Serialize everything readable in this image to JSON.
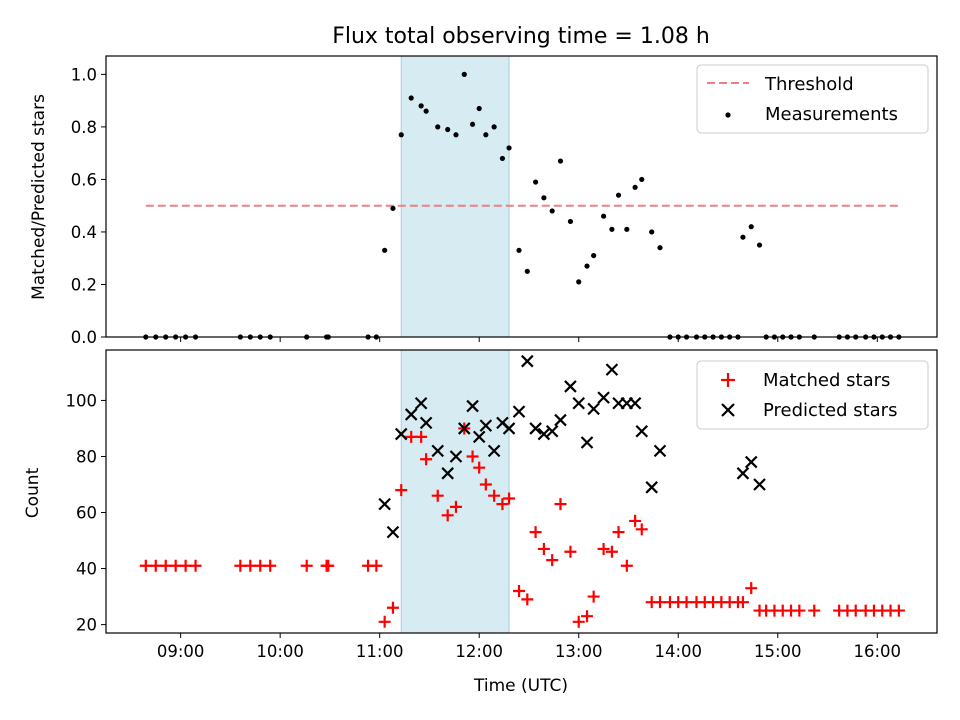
{
  "chart_data": [
    {
      "type": "scatter",
      "title": "Flux total observing time = 1.08 h",
      "xlabel": "",
      "ylabel": "Matched/Predicted stars",
      "xlim": [
        "08:15",
        "16:36"
      ],
      "ylim": [
        0,
        1.07
      ],
      "yticks": [
        "0.0",
        "0.2",
        "0.4",
        "0.6",
        "0.8",
        "1.0"
      ],
      "highlight_span": [
        "11:13",
        "12:18"
      ],
      "legend": {
        "placement": "upper right",
        "entries": [
          "Threshold",
          "Measurements"
        ]
      },
      "threshold": {
        "name": "Threshold",
        "value": 0.5,
        "x_range": [
          "08:39",
          "16:14"
        ],
        "color": "#f08080",
        "style": "dashed"
      },
      "series": [
        {
          "name": "Measurements",
          "color": "#000000",
          "marker": "dot",
          "points": [
            [
              "08:39",
              0
            ],
            [
              "08:45",
              0
            ],
            [
              "08:51",
              0
            ],
            [
              "08:57",
              0
            ],
            [
              "09:03",
              0
            ],
            [
              "09:09",
              0
            ],
            [
              "09:36",
              0
            ],
            [
              "09:42",
              0
            ],
            [
              "09:48",
              0
            ],
            [
              "09:54",
              0
            ],
            [
              "10:16",
              0
            ],
            [
              "10:28",
              0
            ],
            [
              "10:29",
              0
            ],
            [
              "10:53",
              0
            ],
            [
              "10:58",
              0
            ],
            [
              "11:03",
              0.33
            ],
            [
              "11:08",
              0.49
            ],
            [
              "11:13",
              0.77
            ],
            [
              "11:19",
              0.91
            ],
            [
              "11:25",
              0.88
            ],
            [
              "11:28",
              0.86
            ],
            [
              "11:35",
              0.8
            ],
            [
              "11:41",
              0.79
            ],
            [
              "11:46",
              0.77
            ],
            [
              "11:51",
              1.0
            ],
            [
              "11:56",
              0.81
            ],
            [
              "12:00",
              0.87
            ],
            [
              "12:04",
              0.77
            ],
            [
              "12:09",
              0.8
            ],
            [
              "12:14",
              0.68
            ],
            [
              "12:18",
              0.72
            ],
            [
              "12:24",
              0.33
            ],
            [
              "12:29",
              0.25
            ],
            [
              "12:34",
              0.59
            ],
            [
              "12:39",
              0.53
            ],
            [
              "12:44",
              0.48
            ],
            [
              "12:49",
              0.67
            ],
            [
              "12:55",
              0.44
            ],
            [
              "13:00",
              0.21
            ],
            [
              "13:05",
              0.27
            ],
            [
              "13:09",
              0.31
            ],
            [
              "13:15",
              0.46
            ],
            [
              "13:20",
              0.41
            ],
            [
              "13:24",
              0.54
            ],
            [
              "13:29",
              0.41
            ],
            [
              "13:34",
              0.57
            ],
            [
              "13:38",
              0.6
            ],
            [
              "13:44",
              0.4
            ],
            [
              "13:49",
              0.34
            ],
            [
              "13:55",
              0
            ],
            [
              "14:00",
              0
            ],
            [
              "14:05",
              0
            ],
            [
              "14:11",
              0
            ],
            [
              "14:16",
              0
            ],
            [
              "14:21",
              0
            ],
            [
              "14:26",
              0
            ],
            [
              "14:31",
              0
            ],
            [
              "14:36",
              0
            ],
            [
              "14:39",
              0.38
            ],
            [
              "14:44",
              0.42
            ],
            [
              "14:49",
              0.35
            ],
            [
              "14:53",
              0
            ],
            [
              "14:58",
              0
            ],
            [
              "15:03",
              0
            ],
            [
              "15:08",
              0
            ],
            [
              "15:13",
              0
            ],
            [
              "15:22",
              0
            ],
            [
              "15:37",
              0
            ],
            [
              "15:42",
              0
            ],
            [
              "15:47",
              0
            ],
            [
              "15:53",
              0
            ],
            [
              "15:58",
              0
            ],
            [
              "16:03",
              0
            ],
            [
              "16:08",
              0
            ],
            [
              "16:13",
              0
            ]
          ]
        }
      ]
    },
    {
      "type": "scatter",
      "title": "",
      "xlabel": "Time (UTC)",
      "ylabel": "Count",
      "xlim": [
        "08:15",
        "16:36"
      ],
      "ylim": [
        17,
        118
      ],
      "xticks": [
        "09:00",
        "10:00",
        "11:00",
        "12:00",
        "13:00",
        "14:00",
        "15:00",
        "16:00"
      ],
      "yticks": [
        "20",
        "40",
        "60",
        "80",
        "100"
      ],
      "highlight_span": [
        "11:13",
        "12:18"
      ],
      "legend": {
        "placement": "upper right",
        "entries": [
          "Matched stars",
          "Predicted stars"
        ]
      },
      "series": [
        {
          "name": "Matched stars",
          "color": "#ff0000",
          "marker": "plus",
          "points": [
            [
              "08:39",
              41
            ],
            [
              "08:45",
              41
            ],
            [
              "08:51",
              41
            ],
            [
              "08:57",
              41
            ],
            [
              "09:03",
              41
            ],
            [
              "09:09",
              41
            ],
            [
              "09:36",
              41
            ],
            [
              "09:42",
              41
            ],
            [
              "09:48",
              41
            ],
            [
              "09:54",
              41
            ],
            [
              "10:16",
              41
            ],
            [
              "10:28",
              41
            ],
            [
              "10:29",
              41
            ],
            [
              "10:53",
              41
            ],
            [
              "10:58",
              41
            ],
            [
              "11:03",
              21
            ],
            [
              "11:08",
              26
            ],
            [
              "11:13",
              68
            ],
            [
              "11:19",
              87
            ],
            [
              "11:25",
              87
            ],
            [
              "11:28",
              79
            ],
            [
              "11:35",
              66
            ],
            [
              "11:41",
              59
            ],
            [
              "11:46",
              62
            ],
            [
              "11:51",
              90
            ],
            [
              "11:56",
              80
            ],
            [
              "12:00",
              76
            ],
            [
              "12:04",
              70
            ],
            [
              "12:09",
              66
            ],
            [
              "12:14",
              63
            ],
            [
              "12:18",
              65
            ],
            [
              "12:24",
              32
            ],
            [
              "12:29",
              29
            ],
            [
              "12:34",
              53
            ],
            [
              "12:39",
              47
            ],
            [
              "12:44",
              43
            ],
            [
              "12:49",
              63
            ],
            [
              "12:55",
              46
            ],
            [
              "13:00",
              21
            ],
            [
              "13:05",
              23
            ],
            [
              "13:09",
              30
            ],
            [
              "13:15",
              47
            ],
            [
              "13:20",
              46
            ],
            [
              "13:24",
              53
            ],
            [
              "13:29",
              41
            ],
            [
              "13:34",
              57
            ],
            [
              "13:38",
              54
            ],
            [
              "13:44",
              28
            ],
            [
              "13:49",
              28
            ],
            [
              "13:55",
              28
            ],
            [
              "14:00",
              28
            ],
            [
              "14:05",
              28
            ],
            [
              "14:11",
              28
            ],
            [
              "14:16",
              28
            ],
            [
              "14:21",
              28
            ],
            [
              "14:26",
              28
            ],
            [
              "14:31",
              28
            ],
            [
              "14:36",
              28
            ],
            [
              "14:39",
              28
            ],
            [
              "14:44",
              33
            ],
            [
              "14:49",
              25
            ],
            [
              "14:53",
              25
            ],
            [
              "14:58",
              25
            ],
            [
              "15:03",
              25
            ],
            [
              "15:08",
              25
            ],
            [
              "15:13",
              25
            ],
            [
              "15:22",
              25
            ],
            [
              "15:37",
              25
            ],
            [
              "15:42",
              25
            ],
            [
              "15:47",
              25
            ],
            [
              "15:53",
              25
            ],
            [
              "15:58",
              25
            ],
            [
              "16:03",
              25
            ],
            [
              "16:08",
              25
            ],
            [
              "16:13",
              25
            ]
          ]
        },
        {
          "name": "Predicted stars",
          "color": "#000000",
          "marker": "x",
          "points": [
            [
              "11:03",
              63
            ],
            [
              "11:08",
              53
            ],
            [
              "11:13",
              88
            ],
            [
              "11:19",
              95
            ],
            [
              "11:25",
              99
            ],
            [
              "11:28",
              92
            ],
            [
              "11:35",
              82
            ],
            [
              "11:41",
              74
            ],
            [
              "11:46",
              80
            ],
            [
              "11:51",
              90
            ],
            [
              "11:56",
              98
            ],
            [
              "12:00",
              87
            ],
            [
              "12:04",
              91
            ],
            [
              "12:09",
              82
            ],
            [
              "12:14",
              92
            ],
            [
              "12:18",
              90
            ],
            [
              "12:24",
              96
            ],
            [
              "12:29",
              114
            ],
            [
              "12:34",
              90
            ],
            [
              "12:39",
              88
            ],
            [
              "12:44",
              89
            ],
            [
              "12:49",
              93
            ],
            [
              "12:55",
              105
            ],
            [
              "13:00",
              99
            ],
            [
              "13:05",
              85
            ],
            [
              "13:09",
              97
            ],
            [
              "13:15",
              101
            ],
            [
              "13:20",
              111
            ],
            [
              "13:24",
              99
            ],
            [
              "13:29",
              99
            ],
            [
              "13:34",
              99
            ],
            [
              "13:38",
              89
            ],
            [
              "13:44",
              69
            ],
            [
              "13:49",
              82
            ],
            [
              "14:39",
              74
            ],
            [
              "14:44",
              78
            ],
            [
              "14:49",
              70
            ]
          ]
        }
      ]
    }
  ]
}
